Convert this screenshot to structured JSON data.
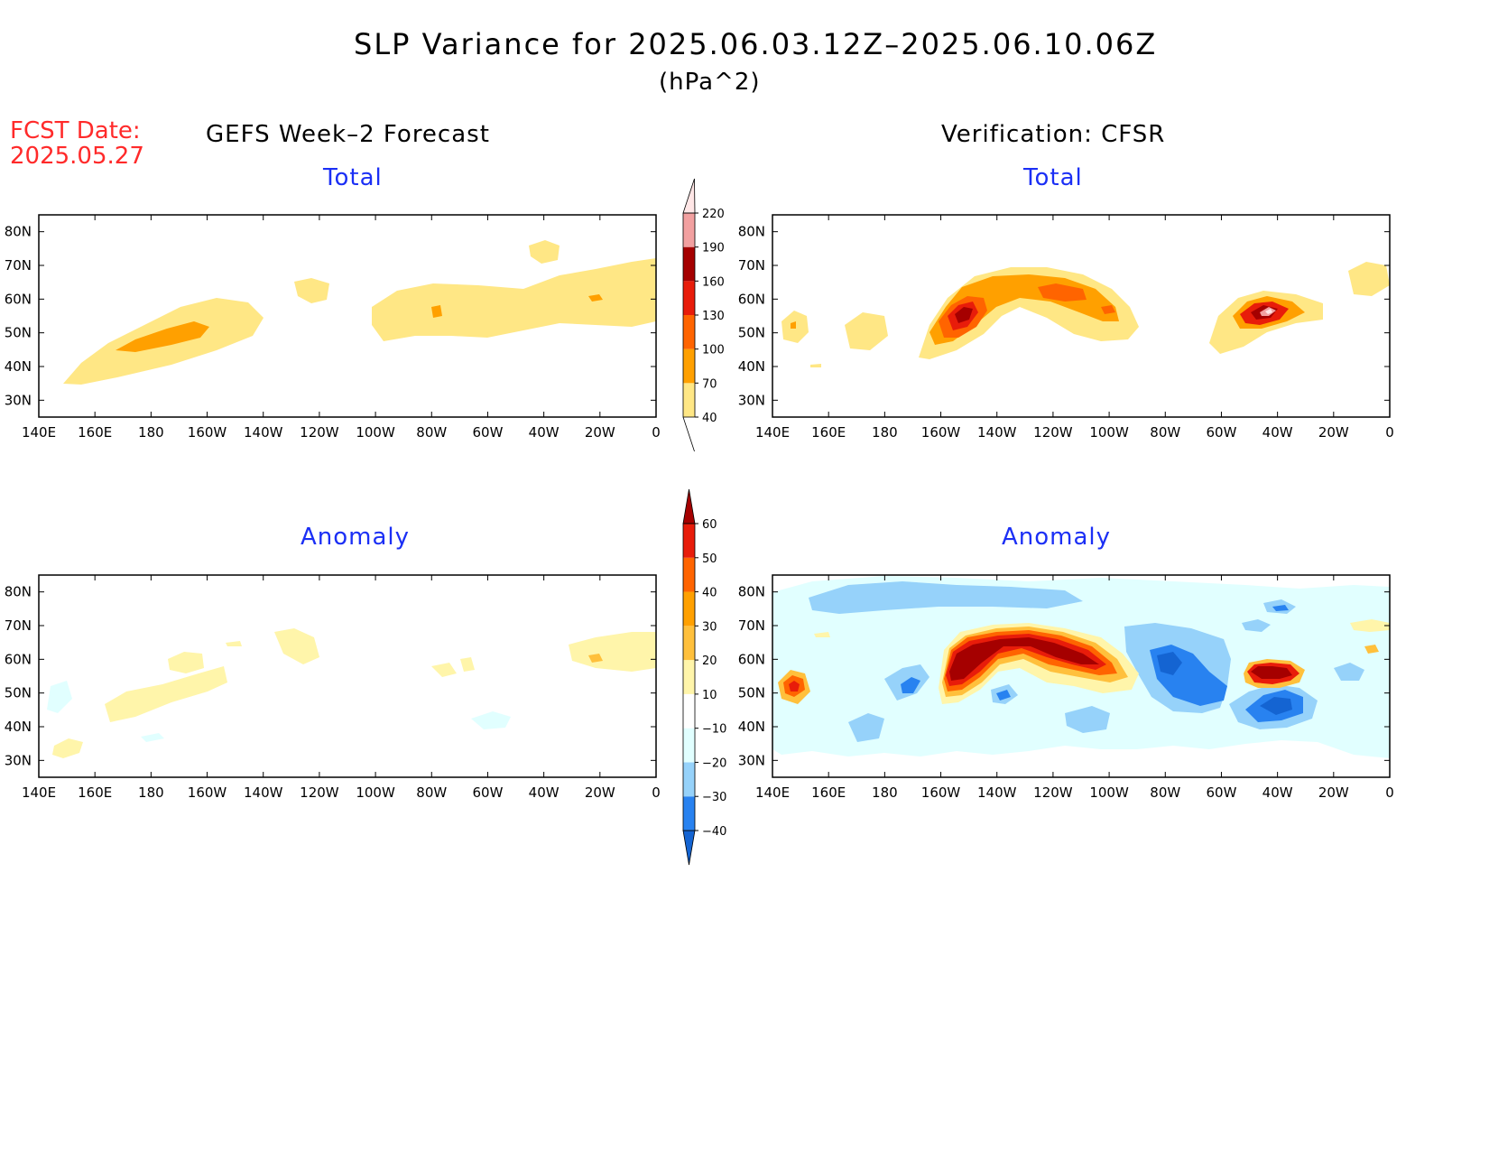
{
  "title": "SLP Variance for 2025.06.03.12Z–2025.06.10.06Z",
  "units": "(hPa^2)",
  "fcst_label": "FCST Date:",
  "fcst_date": "2025.05.27",
  "left_column_title": "GEFS Week–2 Forecast",
  "right_column_title": "Verification: CFSR",
  "panels": [
    {
      "id": "forecast-total",
      "subtitle": "Total"
    },
    {
      "id": "verification-total",
      "subtitle": "Total"
    },
    {
      "id": "forecast-anomaly",
      "subtitle": "Anomaly"
    },
    {
      "id": "verification-anomaly",
      "subtitle": "Anomaly"
    }
  ],
  "axes": {
    "x_ticks": [
      "140E",
      "160E",
      "180",
      "160W",
      "140W",
      "120W",
      "100W",
      "80W",
      "60W",
      "40W",
      "20W",
      "0"
    ],
    "y_ticks": [
      "80N",
      "70N",
      "60N",
      "50N",
      "40N",
      "30N"
    ],
    "lon_range": [
      140,
      360
    ],
    "lat_range": [
      25,
      85
    ]
  },
  "colorbars": {
    "total": {
      "levels": [
        "40",
        "70",
        "100",
        "130",
        "160",
        "190",
        "220"
      ],
      "colors": [
        "#ffe785",
        "#ffa000",
        "#ff6400",
        "#e81c0a",
        "#a50000",
        "#f2a0a0",
        "#ffe6e6"
      ]
    },
    "anomaly": {
      "levels": [
        "−40",
        "−30",
        "−20",
        "−10",
        "10",
        "20",
        "30",
        "40",
        "50",
        "60"
      ],
      "colors": [
        "#1464d2",
        "#2882f0",
        "#96d2fa",
        "#e1ffff",
        "#ffffff",
        "#fff5aa",
        "#ffc03c",
        "#ffa000",
        "#ff6400",
        "#e81c0a",
        "#a50000"
      ]
    }
  }
}
